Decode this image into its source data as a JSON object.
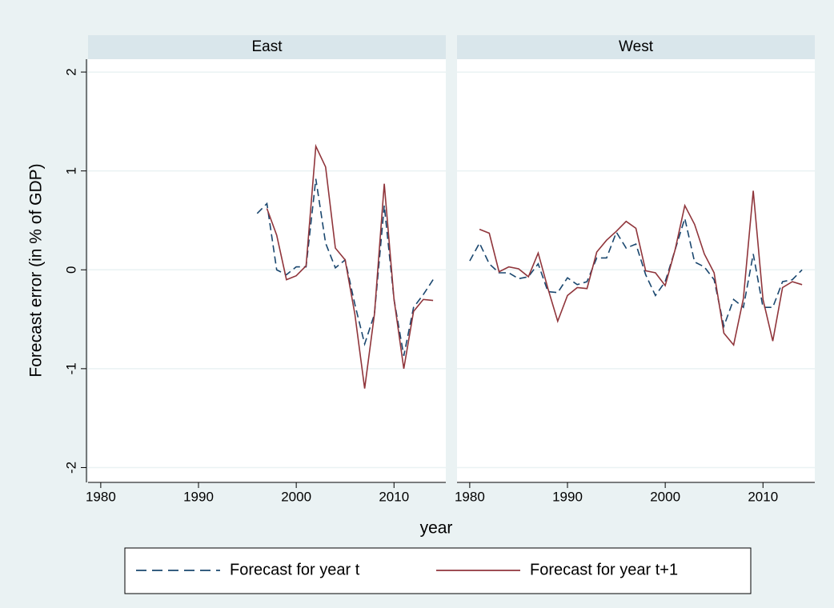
{
  "chart_data": {
    "type": "line",
    "ylabel": "Forecast error (in % of GDP)",
    "xlabel": "year",
    "ylim": [
      -2.15,
      2.13
    ],
    "yticks": [
      -2,
      -1,
      0,
      1,
      2
    ],
    "xlim": [
      1978.7,
      2015.3
    ],
    "xticks": [
      1980,
      1990,
      2000,
      2010
    ],
    "grid": true,
    "legend": [
      {
        "name": "Forecast for year t",
        "color": "#1a476f",
        "dash": true
      },
      {
        "name": "Forecast for year t+1",
        "color": "#90353b",
        "dash": false
      }
    ],
    "panels": [
      {
        "title": "East",
        "x": [
          1996,
          1997,
          1998,
          1999,
          2000,
          2001,
          2002,
          2003,
          2004,
          2005,
          2006,
          2007,
          2008,
          2009,
          2010,
          2011,
          2012,
          2013,
          2014
        ],
        "series": [
          {
            "values": [
              0.57,
              0.67,
              0.0,
              -0.05,
              0.03,
              0.03,
              0.92,
              0.27,
              0.02,
              0.1,
              -0.35,
              -0.75,
              -0.45,
              0.65,
              -0.3,
              -0.87,
              -0.38,
              -0.25,
              -0.1
            ]
          },
          {
            "values": [
              null,
              0.62,
              0.35,
              -0.1,
              -0.06,
              0.04,
              1.25,
              1.04,
              0.22,
              0.1,
              -0.45,
              -1.2,
              -0.45,
              0.87,
              -0.3,
              -1.0,
              -0.42,
              -0.3,
              -0.31
            ]
          }
        ]
      },
      {
        "title": "West",
        "x": [
          1980,
          1981,
          1982,
          1983,
          1984,
          1985,
          1986,
          1987,
          1988,
          1989,
          1990,
          1991,
          1992,
          1993,
          1994,
          1995,
          1996,
          1997,
          1998,
          1999,
          2000,
          2001,
          2002,
          2003,
          2004,
          2005,
          2006,
          2007,
          2008,
          2009,
          2010,
          2011,
          2012,
          2013,
          2014
        ],
        "series": [
          {
            "values": [
              0.09,
              0.27,
              0.06,
              -0.03,
              -0.03,
              -0.09,
              -0.07,
              0.06,
              -0.22,
              -0.23,
              -0.08,
              -0.15,
              -0.12,
              0.12,
              0.12,
              0.38,
              0.22,
              0.26,
              -0.05,
              -0.26,
              -0.12,
              0.2,
              0.52,
              0.08,
              0.03,
              -0.1,
              -0.57,
              -0.3,
              -0.38,
              0.16,
              -0.38,
              -0.38,
              -0.12,
              -0.1,
              0.0
            ]
          },
          {
            "values": [
              null,
              0.41,
              0.37,
              -0.02,
              0.03,
              0.01,
              -0.07,
              0.17,
              -0.19,
              -0.52,
              -0.26,
              -0.18,
              -0.19,
              0.18,
              0.3,
              0.39,
              0.49,
              0.42,
              -0.01,
              -0.03,
              -0.16,
              0.2,
              0.65,
              0.46,
              0.16,
              -0.03,
              -0.64,
              -0.76,
              -0.29,
              0.8,
              -0.3,
              -0.72,
              -0.18,
              -0.12,
              -0.15
            ]
          }
        ]
      }
    ]
  }
}
